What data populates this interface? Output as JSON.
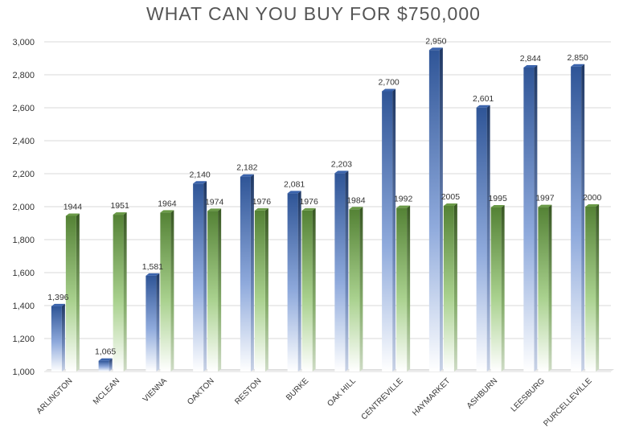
{
  "chart_data": {
    "type": "bar",
    "title": "WHAT CAN YOU BUY FOR $750,000",
    "categories": [
      "ARLINGTON",
      "MCLEAN",
      "VIENNA",
      "OAKTON",
      "RESTON",
      "BURKE",
      "OAK HILL",
      "CENTREVILLE",
      "HAYMARKET",
      "ASHBURN",
      "LEESBURG",
      "PURCELLEVILLE"
    ],
    "series": [
      {
        "values": [
          1396,
          1065,
          1581,
          2140,
          2182,
          2081,
          2203,
          2700,
          2950,
          2601,
          2844,
          2850
        ],
        "labels": [
          "1,396",
          "1,065",
          "1,581",
          "2,140",
          "2,182",
          "2,081",
          "2,203",
          "2,700",
          "2,950",
          "2,601",
          "2,844",
          "2,850"
        ],
        "color": "#2f5597"
      },
      {
        "values": [
          1944,
          1951,
          1964,
          1974,
          1976,
          1976,
          1984,
          1992,
          2005,
          1995,
          1997,
          2000
        ],
        "labels": [
          "1944",
          "1951",
          "1964",
          "1974",
          "1976",
          "1976",
          "1984",
          "1992",
          "2005",
          "1995",
          "1997",
          "2000"
        ],
        "color": "#548235"
      }
    ],
    "ylim": [
      1000,
      3000
    ],
    "yticks": [
      1000,
      1200,
      1400,
      1600,
      1800,
      2000,
      2200,
      2400,
      2600,
      2800,
      3000
    ],
    "ytick_labels": [
      "1,000",
      "1,200",
      "1,400",
      "1,600",
      "1,800",
      "2,000",
      "2,200",
      "2,400",
      "2,600",
      "2,800",
      "3,000"
    ],
    "grid": true,
    "legend": "none"
  }
}
